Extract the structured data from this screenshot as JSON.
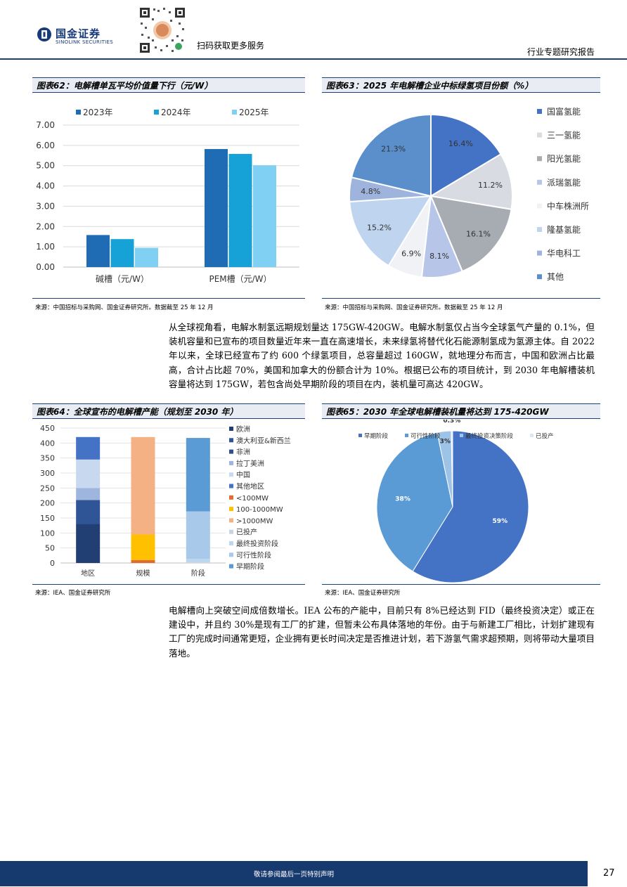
{
  "header": {
    "logo_cn": "国金证券",
    "logo_en": "SINOLINK SECURITIES",
    "scan_text": "扫码获取更多服务",
    "report_type": "行业专题研究报告"
  },
  "fig62": {
    "title": "图表62：电解槽单瓦平均价值量下行（元/W）",
    "source": "来源：中国招标与采购网、国金证券研究所。数据截至 25 年 12 月",
    "chart_data": {
      "type": "bar",
      "categories": [
        "碱槽（元/W）",
        "PEM槽（元/W）"
      ],
      "series": [
        {
          "name": "2023年",
          "values": [
            1.58,
            5.82
          ],
          "color": "#1f6cb5"
        },
        {
          "name": "2024年",
          "values": [
            1.38,
            5.58
          ],
          "color": "#16a2d6"
        },
        {
          "name": "2025年",
          "values": [
            0.95,
            5.02
          ],
          "color": "#7fd0f3"
        }
      ],
      "ylim": [
        0,
        7
      ],
      "yticks": [
        "0.00",
        "1.00",
        "2.00",
        "3.00",
        "4.00",
        "5.00",
        "6.00",
        "7.00"
      ],
      "grid": true,
      "legend": "top"
    }
  },
  "fig63": {
    "title": "图表63：2025 年电解槽企业中标绿氢项目份额（%）",
    "source": "来源：中国招标与采购网、国金证券研究所。数据截至 25 年 12 月",
    "chart_data": {
      "type": "pie",
      "slices": [
        {
          "name": "国富氢能",
          "value": 16.4,
          "label": "16.4%",
          "color": "#4472c4"
        },
        {
          "name": "三一氢能",
          "value": 11.2,
          "label": "11.2%",
          "color": "#d8dbe1"
        },
        {
          "name": "阳光氢能",
          "value": 16.1,
          "label": "16.1%",
          "color": "#a7abb2"
        },
        {
          "name": "派瑞氢能",
          "value": 8.1,
          "label": "8.1%",
          "color": "#b7c5e8"
        },
        {
          "name": "中车株洲所",
          "value": 6.9,
          "label": "6.9%",
          "color": "#f1f2f5"
        },
        {
          "name": "隆基氢能",
          "value": 15.2,
          "label": "15.2%",
          "color": "#bfd4ee"
        },
        {
          "name": "华电科工",
          "value": 4.8,
          "label": "4.8%",
          "color": "#9fb4dc"
        },
        {
          "name": "其他",
          "value": 21.3,
          "label": "21.3%",
          "color": "#5a8fcc"
        }
      ],
      "legend": "right"
    }
  },
  "para1": "从全球视角看，电解水制氢远期规划量达 175GW-420GW。电解水制氢仅占当今全球氢气产量的 0.1%，但装机容量和已宣布的项目数量近年来一直在高速增长，未来绿氢将替代化石能源制氢成为氢源主体。自 2022 年以来，全球已经宣布了约 600 个绿氢项目，总容量超过 160GW，就地理分布而言，中国和欧洲占比最高，合计占比超 70%，美国和加拿大的份额合计为 10%。根据已公布的项目统计，到 2030 年电解槽装机容量将达到 175GW，若包含尚处早期阶段的项目在内，装机量可高达 420GW。",
  "fig64": {
    "title": "图表64：全球宣布的电解槽产能（规划至 2030 年）",
    "source": "来源：IEA、国金证券研究所",
    "chart_data": {
      "type": "bar",
      "stacked": true,
      "categories": [
        "地区",
        "规模",
        "阶段"
      ],
      "ylim": [
        0,
        450
      ],
      "yticks": [
        "0",
        "50",
        "100",
        "150",
        "200",
        "250",
        "300",
        "350",
        "400",
        "450"
      ],
      "series": [
        {
          "name": "欧洲",
          "values": [
            130,
            0,
            0
          ],
          "color": "#223f74"
        },
        {
          "name": "澳大利亚&新西兰",
          "values": [
            80,
            0,
            0
          ],
          "color": "#2f5597"
        },
        {
          "name": "非洲",
          "values": [
            0,
            0,
            0
          ],
          "color": "#2e4f8c"
        },
        {
          "name": "拉丁美洲",
          "values": [
            40,
            0,
            0
          ],
          "color": "#9eb6de"
        },
        {
          "name": "中国",
          "values": [
            95,
            0,
            0
          ],
          "color": "#c8d8ef"
        },
        {
          "name": "其他地区",
          "values": [
            75,
            0,
            0
          ],
          "color": "#4472c4"
        },
        {
          "name": "<100MW",
          "values": [
            0,
            10,
            0
          ],
          "color": "#e06c2d"
        },
        {
          "name": "100-1000MW",
          "values": [
            0,
            85,
            0
          ],
          "color": "#ffc000"
        },
        {
          "name": ">1000MW",
          "values": [
            0,
            325,
            0
          ],
          "color": "#f4b184"
        },
        {
          "name": "已投产",
          "values": [
            0,
            0,
            2
          ],
          "color": "#c9d2e6"
        },
        {
          "name": "最终投资阶段",
          "values": [
            0,
            0,
            12
          ],
          "color": "#bdd7ee"
        },
        {
          "name": "可行性阶段",
          "values": [
            0,
            0,
            158
          ],
          "color": "#a8c9e9"
        },
        {
          "name": "早期阶段",
          "values": [
            0,
            0,
            245
          ],
          "color": "#5b9bd5"
        }
      ],
      "legend": "right"
    }
  },
  "fig65": {
    "title": "图表65：2030 年全球电解槽装机量将达到 175-420GW",
    "source": "来源：IEA、国金证券研究所",
    "chart_data": {
      "type": "pie",
      "slices": [
        {
          "name": "早期阶段",
          "value": 59,
          "label": "59%",
          "color": "#4472c4"
        },
        {
          "name": "可行性阶段",
          "value": 38,
          "label": "38%",
          "color": "#5b9bd5"
        },
        {
          "name": "最终投资决策阶段",
          "value": 3,
          "label": "3%",
          "color": "#9dc3e6"
        },
        {
          "name": "已投产",
          "value": 0.3,
          "label": "0.3%",
          "color": "#dbe7f4"
        }
      ],
      "legend": "top"
    }
  },
  "para2": "电解槽向上突破空间成倍数增长。IEA 公布的产能中，目前只有 8%已经达到 FID（最终投资决定）或正在建设中，并且约 30%是现有工厂的扩建，但暂未公布具体落地的年份。由于与新建工厂相比，计划扩建现有工厂的完成时间通常更短，企业拥有更长时间决定是否推进计划，若下游氢气需求超预期，则将带动大量项目落地。",
  "footer": {
    "note": "敬请参阅最后一页特别声明",
    "page": "27"
  }
}
